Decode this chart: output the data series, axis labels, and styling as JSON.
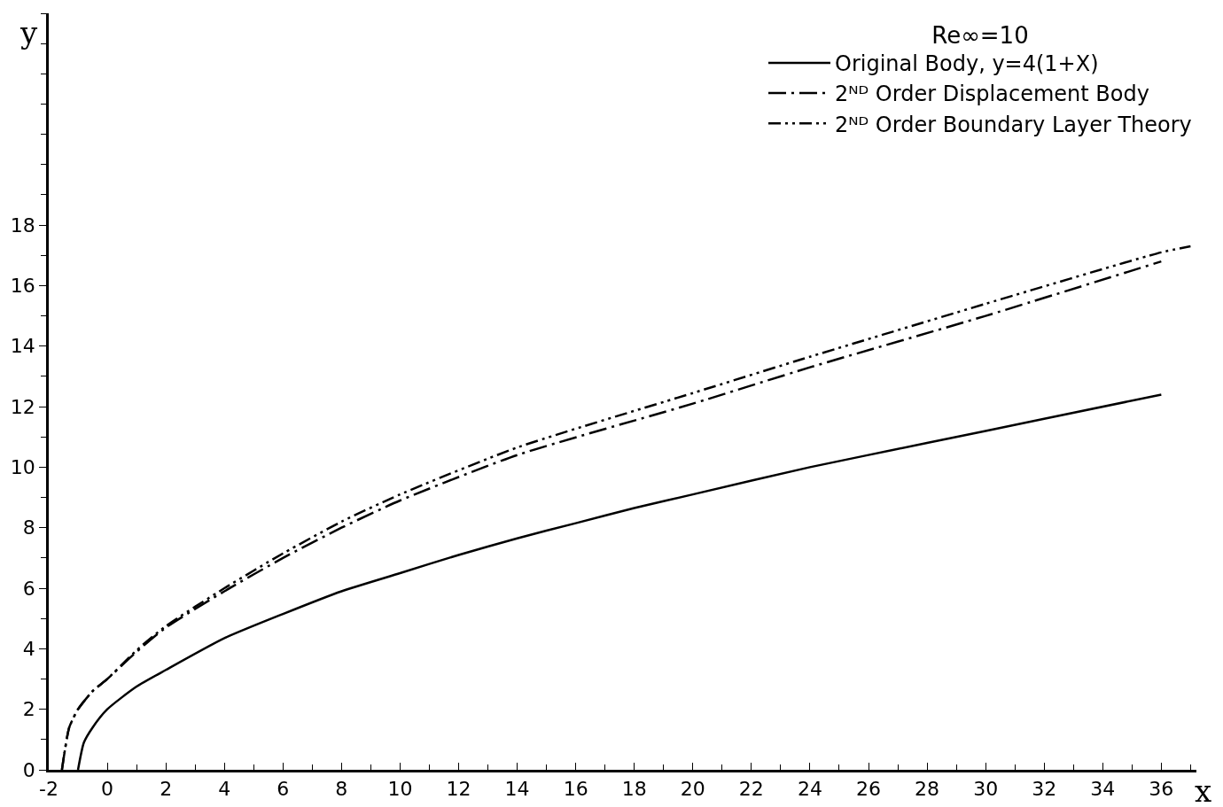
{
  "chart_data": {
    "type": "line",
    "legend_title": "Re∞=10",
    "xlabel": "x",
    "ylabel": "y",
    "xlim": [
      -2,
      37.2
    ],
    "ylim": [
      0,
      25
    ],
    "xticks": [
      -2,
      0,
      2,
      4,
      6,
      8,
      10,
      12,
      14,
      16,
      18,
      20,
      22,
      24,
      26,
      28,
      30,
      32,
      34,
      36
    ],
    "yticks": [
      0,
      2,
      4,
      6,
      8,
      10,
      12,
      14,
      16,
      18
    ],
    "grid": false,
    "legend": "top right",
    "marker": "none",
    "series": [
      {
        "name": "Original Body, y=4(1+X)",
        "color": "#000000",
        "line_style": "solid",
        "x": [
          -1,
          -0.8,
          -0.5,
          0,
          1,
          2,
          4,
          6,
          8,
          10,
          12,
          14,
          16,
          18,
          20,
          24,
          28,
          32,
          36
        ],
        "values": [
          0,
          0.9,
          1.4,
          2.0,
          2.75,
          3.3,
          4.35,
          5.15,
          5.9,
          6.5,
          7.1,
          7.65,
          8.15,
          8.65,
          9.1,
          10.0,
          10.8,
          11.6,
          12.4
        ]
      },
      {
        "name": "2ᴺᴰ Order Displacement Body",
        "color": "#000000",
        "line_style": "dashdot",
        "x": [
          -1.55,
          -1.3,
          -1,
          -0.5,
          0,
          1,
          2,
          4,
          6,
          8,
          10,
          14,
          20,
          24,
          30,
          36
        ],
        "values": [
          0,
          1.4,
          2.0,
          2.6,
          3.0,
          3.9,
          4.7,
          5.9,
          7.0,
          8.0,
          8.9,
          10.4,
          12.1,
          13.3,
          15.0,
          16.8
        ]
      },
      {
        "name": "2ᴺᴰ Order Boundary Layer Theory",
        "color": "#000000",
        "line_style": "dashdotdot",
        "x": [
          -1.55,
          -1.3,
          -1,
          -0.5,
          0,
          1,
          2,
          4,
          6,
          8,
          10,
          14,
          20,
          24,
          30,
          36,
          37
        ],
        "values": [
          0,
          1.4,
          2.0,
          2.6,
          3.0,
          3.95,
          4.75,
          6.0,
          7.15,
          8.2,
          9.1,
          10.65,
          12.45,
          13.65,
          15.4,
          17.1,
          17.3
        ]
      }
    ]
  }
}
